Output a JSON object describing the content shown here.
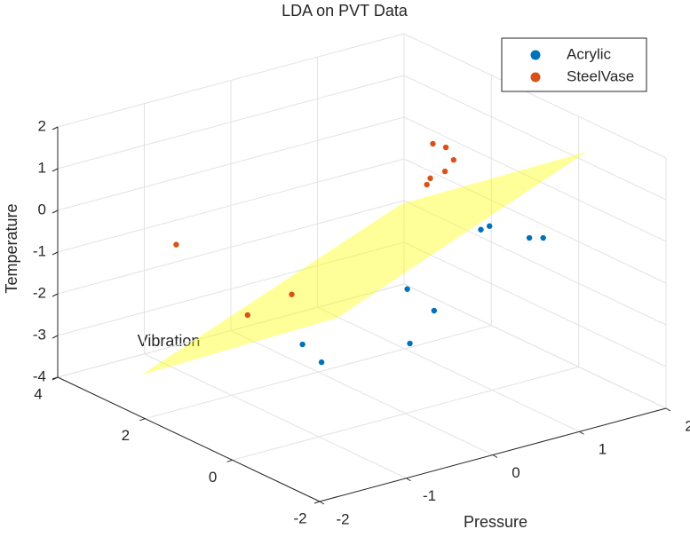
{
  "chart_data": {
    "type": "scatter3d",
    "title": "LDA on PVT Data",
    "xlabel": "Pressure",
    "ylabel": "Vibration",
    "zlabel": "Temperature",
    "xlim": [
      -2,
      2
    ],
    "ylim": [
      -2,
      4
    ],
    "zlim": [
      -4,
      2
    ],
    "xticks": [
      -2,
      -1,
      0,
      1,
      2
    ],
    "yticks": [
      -2,
      0,
      2,
      4
    ],
    "zticks": [
      -4,
      -3,
      -2,
      -1,
      0,
      1,
      2
    ],
    "grid": true,
    "legend": "northeast",
    "series": [
      {
        "name": "Acrylic",
        "color": "#0072BD",
        "x": [
          0.87,
          0.97,
          1.43,
          1.59,
          0.02,
          0.33,
          0.05,
          -1.19,
          -0.97
        ],
        "y": [
          0,
          0,
          0,
          0,
          0,
          0,
          0,
          0,
          0
        ],
        "z": [
          -0.08,
          -0.05,
          -0.59,
          -0.68,
          -1.03,
          -1.72,
          -2.35,
          -1.68,
          -2.23
        ]
      },
      {
        "name": "SteelVase",
        "color": "#D95319",
        "x": [
          0.82,
          0.97,
          1.06,
          0.96,
          0.79,
          0.75,
          -1.64,
          -0.81,
          -1.32
        ],
        "y": [
          1,
          1,
          1,
          1,
          1,
          1,
          2,
          1,
          1
        ],
        "z": [
          1.51,
          1.34,
          0.99,
          0.77,
          0.7,
          0.57,
          -0.03,
          -1.19,
          -1.4
        ]
      }
    ],
    "surface": {
      "color": "#ffff00",
      "alpha": 0.4,
      "x": [
        -2,
        -1.8,
        1.99,
        1.97
      ],
      "y": [
        2.1,
        -2,
        -0.2,
        4
      ],
      "z": [
        -3.01,
        0.29,
        1.26,
        -2.06
      ]
    }
  }
}
